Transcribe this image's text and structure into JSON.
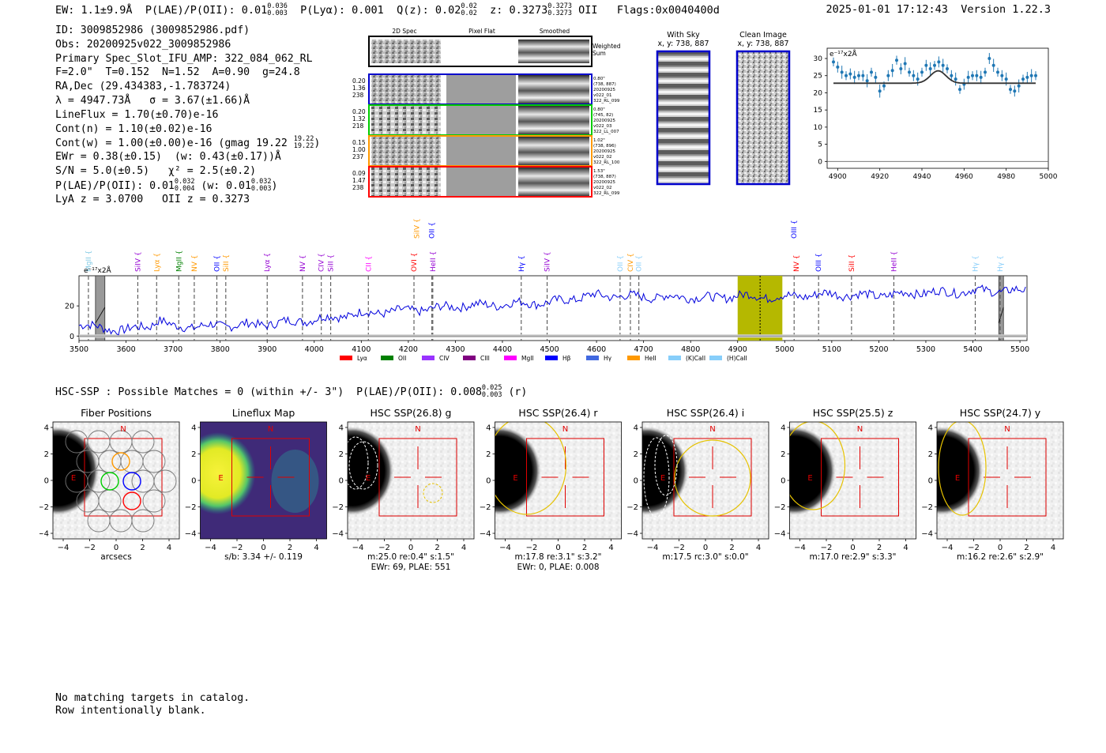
{
  "header": {
    "ew": "EW: 1.1±9.9Å",
    "plae_label": "P(LAE)/P(OII):",
    "plae_value": "0.01",
    "plae_hi": "0.036",
    "plae_lo": "0.003",
    "plya_label": "P(Lyα): 0.001",
    "qz_label": "Q(z): 0.02",
    "qz_hi": "0.02",
    "qz_lo": "0.02",
    "z_label": "z: 0.3273",
    "z_hi": "0.3273",
    "z_lo": "0.3273",
    "z_line": "OII",
    "flags": "Flags:0x0040400d",
    "timestamp": "2025-01-01 17:12:43",
    "version": "Version 1.22.3"
  },
  "info": {
    "id": "ID: 3009852986 (3009852986.pdf)",
    "obs": "Obs: 20200925v022_3009852986",
    "slot": "Primary Spec_Slot_IFU_AMP: 322_084_062_RL",
    "params": "F=2.0\"  T=0.152  N=1.52  A=0.90  g=24.8",
    "radec": "RA,Dec (29.434383,-1.783724)",
    "lambda_sigma": "λ = 4947.73Å   σ = 3.67(±1.66)Å",
    "lineflux": "LineFlux = 1.70(±0.70)e-16",
    "cont_n": "Cont(n) = 1.10(±0.02)e-16",
    "cont_w_pre": "Cont(w) = 1.00(±0.00)e-16 (gmag 19.22",
    "cont_w_hi": "19.22",
    "cont_w_lo": "19.22",
    "cont_w_post": ")",
    "ewr": "EWr = 0.38(±0.15)  (w: 0.43(±0.17))Å",
    "sn_chi": "S/N = 5.0(±0.5)   χ² = 2.5(±0.2)",
    "plae_pre": "P(LAE)/P(OII): 0.01",
    "plae_hi": "0.032",
    "plae_lo": "0.004",
    "plae_mid": " (w: 0.01",
    "plae_w_hi": "0.032",
    "plae_w_lo": "0.003",
    "plae_post": ")",
    "lya_oii": "LyA z = 3.0700   OII z = 0.3273"
  },
  "cutouts": {
    "col_2d": "2D Spec",
    "col_flat": "Pixel Flat",
    "col_smooth": "Smoothed",
    "weighted": "Weighted",
    "sum": "Sum",
    "rows": [
      {
        "color": "#0000cc",
        "stats": [
          "0.20",
          "1.36",
          "238"
        ],
        "meta": [
          "0.80\"",
          "(738, 887)",
          "20200925",
          "v022_01",
          "322_RL_099"
        ]
      },
      {
        "color": "#00cc00",
        "stats": [
          "0.20",
          "1.32",
          "218"
        ],
        "meta": [
          "0.80\"",
          "(745, 82)",
          "20200925",
          "v022_03",
          "322_LL_007"
        ]
      },
      {
        "color": "#ff9900",
        "stats": [
          "0.15",
          "1.00",
          "237"
        ],
        "meta": [
          "1.02\"",
          "(738, 896)",
          "20200925",
          "v022_02",
          "322_RL_100"
        ]
      },
      {
        "color": "#ff0000",
        "stats": [
          "0.09",
          "1.47",
          "238"
        ],
        "meta": [
          "1.53\"",
          "(738, 887)",
          "20200925",
          "v022_02",
          "322_RL_099"
        ]
      }
    ]
  },
  "sky": {
    "with_sky_title": "With Sky",
    "with_sky_xy": "x, y: 738, 887",
    "clean_title": "Clean Image",
    "clean_xy": "x, y: 738, 887"
  },
  "zoom_chart": {
    "ylabel": "e⁻¹⁷x2Å",
    "yticks": [
      "0",
      "5",
      "10",
      "15",
      "20",
      "25",
      "30"
    ],
    "xticks": [
      "4900",
      "4920",
      "4940",
      "4960",
      "4980",
      "5000"
    ]
  },
  "chart_data": [
    {
      "type": "scatter",
      "title": "",
      "ylabel": "e^-17 x2Å",
      "xlabel": "",
      "xlim": [
        4895,
        5000
      ],
      "ylim": [
        -2,
        33
      ],
      "x": [
        4898,
        4900,
        4902,
        4904,
        4906,
        4908,
        4910,
        4912,
        4914,
        4916,
        4918,
        4920,
        4922,
        4924,
        4926,
        4928,
        4930,
        4932,
        4934,
        4936,
        4938,
        4940,
        4942,
        4944,
        4946,
        4948,
        4950,
        4952,
        4954,
        4956,
        4958,
        4960,
        4962,
        4964,
        4966,
        4968,
        4970,
        4972,
        4974,
        4976,
        4978,
        4980,
        4982,
        4984,
        4986,
        4988,
        4990,
        4992,
        4994
      ],
      "y": [
        29,
        27.5,
        26,
        25,
        25.5,
        24.5,
        25,
        25,
        23.5,
        26,
        24.5,
        20.5,
        22,
        25,
        26.5,
        29.5,
        27,
        28.5,
        26,
        25,
        24,
        26,
        28,
        27,
        28,
        29,
        28,
        27,
        25,
        24,
        21,
        22.5,
        24.5,
        25,
        25,
        24.5,
        26,
        30,
        28,
        26,
        25,
        24,
        21,
        20.5,
        22,
        24,
        24.5,
        25,
        25
      ],
      "model": {
        "continuum": 22.8,
        "peak": 4947.7,
        "amplitude": 3.6,
        "sigma": 3.7
      }
    },
    {
      "type": "line",
      "title": "",
      "ylabel": "e^-17 x2Å",
      "xlabel": "",
      "xlim": [
        3500,
        5515
      ],
      "ylim": [
        -3,
        40
      ],
      "xticks": [
        3500,
        3600,
        3700,
        3800,
        3900,
        4000,
        4100,
        4200,
        4300,
        4400,
        4500,
        4600,
        4700,
        4800,
        4900,
        5000,
        5100,
        5200,
        5300,
        5400,
        5500
      ],
      "yticks": [
        0,
        20
      ],
      "highlight": [
        4900,
        4995
      ],
      "marker": 4947.7,
      "masked": [
        [
          3535,
          3555
        ],
        [
          5455,
          5465
        ]
      ],
      "series": [
        {
          "name": "spectrum",
          "color": "#0000dd"
        }
      ],
      "spectrum_anchor_x": [
        3500,
        3550,
        3600,
        3650,
        3670,
        3700,
        3800,
        3900,
        4000,
        4050,
        4100,
        4200,
        4250,
        4300,
        4400,
        4450,
        4500,
        4550,
        4600,
        4700,
        4800,
        4850,
        4900,
        4950,
        5000,
        5050,
        5100,
        5150,
        5200,
        5250,
        5300,
        5350,
        5400,
        5450,
        5500
      ],
      "spectrum_anchor_y": [
        8,
        5,
        4,
        7,
        11,
        6,
        7,
        8,
        11,
        13,
        15,
        17,
        18,
        20,
        21,
        22,
        22,
        25,
        27,
        26,
        26,
        25,
        27,
        26,
        26,
        27,
        28,
        27,
        27,
        28,
        29,
        29,
        30,
        30,
        30
      ],
      "line_labels": [
        {
          "label": "MgII",
          "wave": 3520,
          "color": "#7ec8e3",
          "tier": 0
        },
        {
          "label": "SiIV",
          "wave": 3625,
          "color": "#9400d3",
          "tier": 0
        },
        {
          "label": "Lyα",
          "wave": 3665,
          "color": "#ff9900",
          "tier": 0
        },
        {
          "label": "MgII",
          "wave": 3712,
          "color": "#008000",
          "tier": 0
        },
        {
          "label": "NV",
          "wave": 3745,
          "color": "#ff9900",
          "tier": 0
        },
        {
          "label": "OII",
          "wave": 3793,
          "color": "#0000ff",
          "tier": 0
        },
        {
          "label": "SiII",
          "wave": 3812,
          "color": "#ff9900",
          "tier": 0
        },
        {
          "label": "Lyα",
          "wave": 3900,
          "color": "#9400d3",
          "tier": 0
        },
        {
          "label": "NV",
          "wave": 3975,
          "color": "#9400d3",
          "tier": 0
        },
        {
          "label": "CIV",
          "wave": 4015,
          "color": "#9400d3",
          "tier": 0
        },
        {
          "label": "SiII",
          "wave": 4035,
          "color": "#9400d3",
          "tier": 0
        },
        {
          "label": "CII",
          "wave": 4115,
          "color": "#ff00ff",
          "tier": 0
        },
        {
          "label": "OVI",
          "wave": 4212,
          "color": "#ff0000",
          "tier": 0
        },
        {
          "label": "HeII",
          "wave": 4252,
          "color": "#9400d3",
          "tier": 0
        },
        {
          "label": "SiIV",
          "wave": 4218,
          "color": "#ff9900",
          "tier": 1
        },
        {
          "label": "OII",
          "wave": 4250,
          "color": "#0000ff",
          "tier": 1
        },
        {
          "label": "Hγ",
          "wave": 4440,
          "color": "#0000ff",
          "tier": 0
        },
        {
          "label": "SiIV",
          "wave": 4495,
          "color": "#9400d3",
          "tier": 0
        },
        {
          "label": "OII",
          "wave": 4650,
          "color": "#87cefa",
          "tier": 0
        },
        {
          "label": "CIV",
          "wave": 4672,
          "color": "#ff9900",
          "tier": 0
        },
        {
          "label": "OII",
          "wave": 4690,
          "color": "#87cefa",
          "tier": 0
        },
        {
          "label": "OIII",
          "wave": 5020,
          "color": "#0000ff",
          "tier": 1
        },
        {
          "label": "NV",
          "wave": 5025,
          "color": "#ff0000",
          "tier": 0
        },
        {
          "label": "OIII",
          "wave": 5072,
          "color": "#0000ff",
          "tier": 0
        },
        {
          "label": "SiII",
          "wave": 5142,
          "color": "#ff0000",
          "tier": 0
        },
        {
          "label": "HeII",
          "wave": 5232,
          "color": "#9400d3",
          "tier": 0
        },
        {
          "label": "Hγ",
          "wave": 5405,
          "color": "#87cefa",
          "tier": 0
        },
        {
          "label": "Hγ",
          "wave": 5458,
          "color": "#87cefa",
          "tier": 0
        }
      ],
      "legend": [
        {
          "label": "Lyα",
          "color": "#ff0000"
        },
        {
          "label": "OII",
          "color": "#008000"
        },
        {
          "label": "CIV",
          "color": "#9933ff"
        },
        {
          "label": "CIII",
          "color": "#800080"
        },
        {
          "label": "MgII",
          "color": "#ff00ff"
        },
        {
          "label": "Hβ",
          "color": "#0000ff"
        },
        {
          "label": "Hγ",
          "color": "#4169e1"
        },
        {
          "label": "HeII",
          "color": "#ff9900"
        },
        {
          "label": "(K)CaII",
          "color": "#87cefa"
        },
        {
          "label": "(H)CaII",
          "color": "#87cefa"
        }
      ]
    }
  ],
  "hsc": {
    "title_pre": "HSC-SSP : Possible Matches = 0 (within +/- 3\")  P(LAE)/P(OII): 0.008",
    "title_hi": "0.025",
    "title_lo": "0.003",
    "title_post": "(r)",
    "axis_ticks": [
      "4",
      "2",
      "0",
      "−2",
      "−4"
    ],
    "x_ticks": [
      "−4",
      "−2",
      "0",
      "2",
      "4"
    ],
    "north": "N",
    "east": "E",
    "panels": [
      {
        "title": "Fiber Positions",
        "captions": [
          "arcsecs"
        ]
      },
      {
        "title": "Lineflux Map",
        "captions": [
          "s/b: 3.34 +/- 0.119"
        ]
      },
      {
        "title": "HSC SSP(26.8) g",
        "captions": [
          "m:25.0  re:0.4\"  s:1.5\"",
          "EWr: 69, PLAE: 551"
        ]
      },
      {
        "title": "HSC SSP(26.4) r",
        "captions": [
          "m:17.8  re:3.1\"  s:3.2\"",
          "EWr: 0, PLAE: 0.008"
        ]
      },
      {
        "title": "HSC SSP(26.4) i",
        "captions": [
          "m:17.5 rc:3.0\"  s:0.0\""
        ]
      },
      {
        "title": "HSC SSP(25.5) z",
        "captions": [
          "m:17.0  re:2.9\"  s:3.3\""
        ]
      },
      {
        "title": "HSC SSP(24.7) y",
        "captions": [
          "m:16.2  re:2.6\"  s:2.9\""
        ]
      }
    ]
  },
  "footer": {
    "line1": "No matching targets in catalog.",
    "line2": "Row intentionally blank."
  }
}
